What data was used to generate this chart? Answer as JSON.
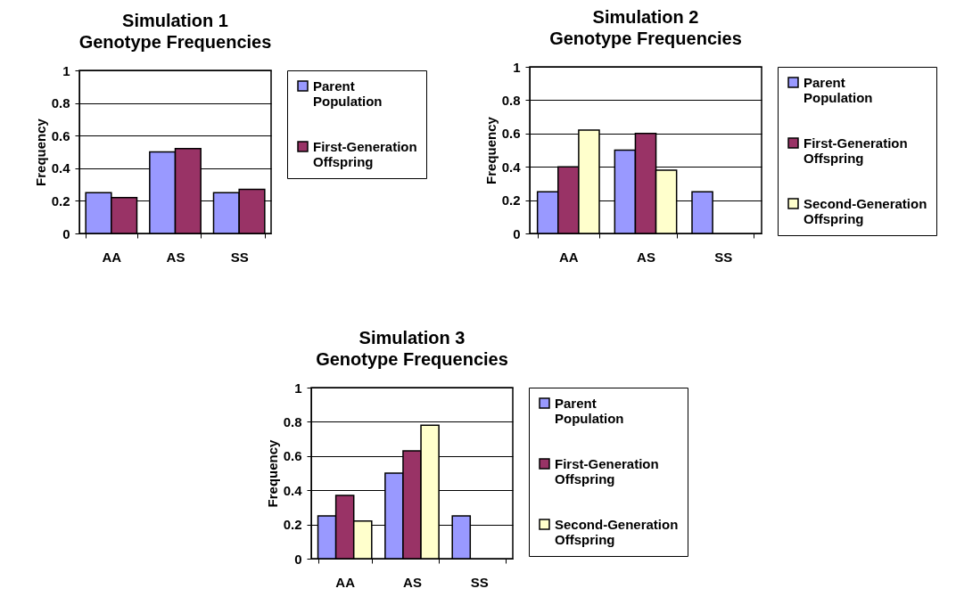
{
  "chart_data": [
    {
      "type": "bar",
      "title": "Simulation 1",
      "subtitle": "Genotype Frequencies",
      "ylabel": "Frequency",
      "categories": [
        "AA",
        "AS",
        "SS"
      ],
      "ylim": [
        0,
        1
      ],
      "yticks": [
        0,
        0.2,
        0.4,
        0.6,
        0.8,
        1
      ],
      "grid": "y",
      "legend": "right",
      "series": [
        {
          "name": "Parent Population",
          "color": "#9999ff",
          "values": [
            0.25,
            0.5,
            0.25
          ]
        },
        {
          "name": "First-Generation Offspring",
          "color": "#993366",
          "values": [
            0.22,
            0.52,
            0.27
          ]
        }
      ]
    },
    {
      "type": "bar",
      "title": "Simulation 2",
      "subtitle": "Genotype Frequencies",
      "ylabel": "Frequency",
      "categories": [
        "AA",
        "AS",
        "SS"
      ],
      "ylim": [
        0,
        1
      ],
      "yticks": [
        0,
        0.2,
        0.4,
        0.6,
        0.8,
        1
      ],
      "grid": "y",
      "legend": "right",
      "series": [
        {
          "name": "Parent Population",
          "color": "#9999ff",
          "values": [
            0.25,
            0.5,
            0.25
          ]
        },
        {
          "name": "First-Generation Offspring",
          "color": "#993366",
          "values": [
            0.4,
            0.6,
            null
          ]
        },
        {
          "name": "Second-Generation Offspring",
          "color": "#ffffcc",
          "values": [
            0.62,
            0.38,
            null
          ]
        }
      ]
    },
    {
      "type": "bar",
      "title": "Simulation 3",
      "subtitle": "Genotype Frequencies",
      "ylabel": "Frequency",
      "categories": [
        "AA",
        "AS",
        "SS"
      ],
      "ylim": [
        0,
        1
      ],
      "yticks": [
        0,
        0.2,
        0.4,
        0.6,
        0.8,
        1
      ],
      "grid": "y",
      "legend": "right",
      "series": [
        {
          "name": "Parent Population",
          "color": "#9999ff",
          "values": [
            0.25,
            0.5,
            0.25
          ]
        },
        {
          "name": "First-Generation Offspring",
          "color": "#993366",
          "values": [
            0.37,
            0.63,
            null
          ]
        },
        {
          "name": "Second-Generation Offspring",
          "color": "#ffffcc",
          "values": [
            0.22,
            0.78,
            null
          ]
        }
      ]
    }
  ]
}
